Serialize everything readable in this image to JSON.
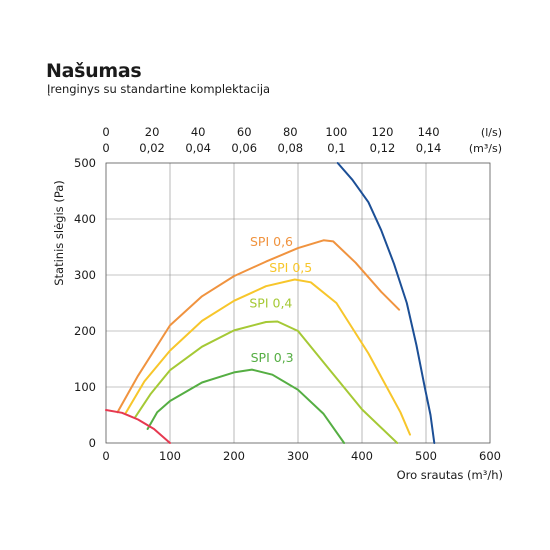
{
  "header": {
    "title": "Našumas",
    "subtitle": "Įrenginys su standartine komplektacija"
  },
  "chart_data": {
    "type": "line",
    "title": "Našumas",
    "subtitle": "Įrenginys su standartine komplektacija",
    "xlabel": "Oro srautas (m³/h)",
    "ylabel": "Statinis slėgis (Pa)",
    "xlim": [
      0,
      600
    ],
    "ylim": [
      0,
      500
    ],
    "x_ticks": [
      0,
      100,
      200,
      300,
      400,
      500,
      600
    ],
    "y_ticks": [
      0,
      100,
      200,
      300,
      400,
      500
    ],
    "x_grid": [
      100,
      200,
      300,
      400,
      500
    ],
    "y_grid": [
      100,
      200,
      300,
      400
    ],
    "top_axis_ls": {
      "unit": "(l/s)",
      "ticks": [
        {
          "label": "0",
          "value": 0
        },
        {
          "label": "20",
          "value": 20
        },
        {
          "label": "40",
          "value": 40
        },
        {
          "label": "60",
          "value": 60
        },
        {
          "label": "80",
          "value": 80
        },
        {
          "label": "100",
          "value": 100
        },
        {
          "label": "120",
          "value": 120
        },
        {
          "label": "140",
          "value": 140
        }
      ]
    },
    "top_axis_m3s": {
      "unit": "(m³/s)",
      "ticks": [
        {
          "label": "0",
          "value": 0
        },
        {
          "label": "0,02",
          "value": 0.02
        },
        {
          "label": "0,04",
          "value": 0.04
        },
        {
          "label": "0,06",
          "value": 0.06
        },
        {
          "label": "0,08",
          "value": 0.08
        },
        {
          "label": "0,1",
          "value": 0.1
        },
        {
          "label": "0,12",
          "value": 0.12
        },
        {
          "label": "0,14",
          "value": 0.14
        }
      ]
    },
    "series": [
      {
        "name": "SPI 0,6",
        "color": "#f0933f",
        "label_at": [
          225,
          352
        ],
        "points": [
          [
            18,
            55
          ],
          [
            50,
            120
          ],
          [
            100,
            210
          ],
          [
            150,
            262
          ],
          [
            200,
            298
          ],
          [
            250,
            324
          ],
          [
            300,
            348
          ],
          [
            340,
            362
          ],
          [
            355,
            360
          ],
          [
            390,
            322
          ],
          [
            430,
            270
          ],
          [
            458,
            238
          ]
        ]
      },
      {
        "name": "SPI 0,5",
        "color": "#f7c62b",
        "label_at": [
          255,
          305
        ],
        "points": [
          [
            30,
            52
          ],
          [
            60,
            110
          ],
          [
            100,
            165
          ],
          [
            150,
            218
          ],
          [
            200,
            254
          ],
          [
            250,
            280
          ],
          [
            295,
            292
          ],
          [
            320,
            287
          ],
          [
            360,
            250
          ],
          [
            410,
            160
          ],
          [
            460,
            55
          ],
          [
            475,
            15
          ]
        ]
      },
      {
        "name": "SPI 0,4",
        "color": "#a5c935",
        "label_at": [
          224,
          242
        ],
        "points": [
          [
            45,
            45
          ],
          [
            70,
            88
          ],
          [
            100,
            130
          ],
          [
            150,
            172
          ],
          [
            200,
            201
          ],
          [
            250,
            216
          ],
          [
            268,
            217
          ],
          [
            300,
            200
          ],
          [
            350,
            130
          ],
          [
            400,
            60
          ],
          [
            455,
            0
          ]
        ]
      },
      {
        "name": "SPI 0,3",
        "color": "#55ae43",
        "label_at": [
          226,
          145
        ],
        "points": [
          [
            65,
            25
          ],
          [
            80,
            55
          ],
          [
            100,
            75
          ],
          [
            150,
            108
          ],
          [
            200,
            126
          ],
          [
            228,
            131
          ],
          [
            260,
            122
          ],
          [
            300,
            95
          ],
          [
            340,
            52
          ],
          [
            372,
            0
          ]
        ]
      },
      {
        "name": "",
        "color": "#e63950",
        "points": [
          [
            0,
            59
          ],
          [
            25,
            54
          ],
          [
            50,
            42
          ],
          [
            75,
            25
          ],
          [
            100,
            0
          ]
        ]
      },
      {
        "name": "",
        "color": "#1c4f96",
        "points": [
          [
            362,
            500
          ],
          [
            385,
            470
          ],
          [
            410,
            430
          ],
          [
            430,
            380
          ],
          [
            450,
            320
          ],
          [
            470,
            250
          ],
          [
            485,
            175
          ],
          [
            498,
            100
          ],
          [
            507,
            50
          ],
          [
            513,
            0
          ]
        ]
      }
    ]
  }
}
